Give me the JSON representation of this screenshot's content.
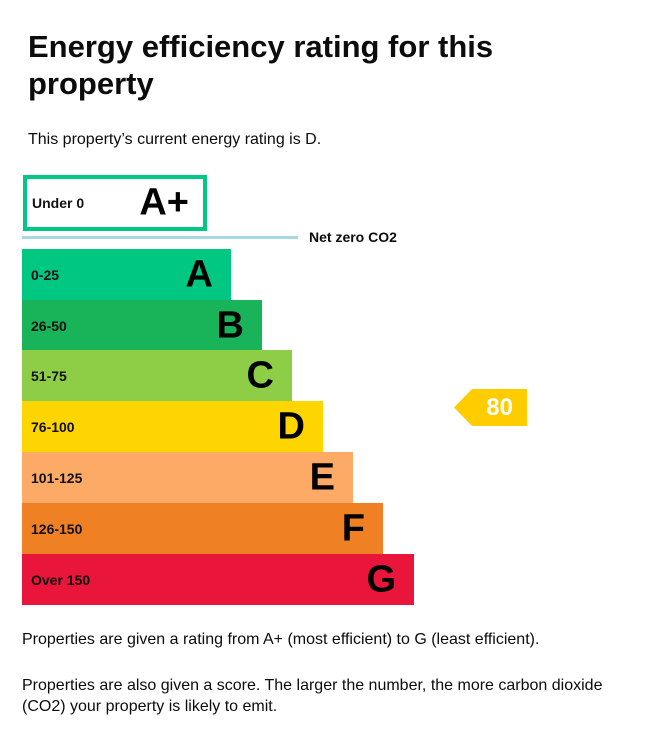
{
  "title": "Energy efficiency rating for this property",
  "intro": "This property’s current energy rating is D.",
  "chart_data": {
    "type": "bar",
    "aplus": {
      "range": "Under 0",
      "letter": "A+",
      "color": "#00c781"
    },
    "net_zero_label": "Net zero CO2",
    "bands": [
      {
        "range": "0-25",
        "letter": "A",
        "color": "#00c781"
      },
      {
        "range": "26-50",
        "letter": "B",
        "color": "#19b459"
      },
      {
        "range": "51-75",
        "letter": "C",
        "color": "#8dce46"
      },
      {
        "range": "76-100",
        "letter": "D",
        "color": "#ffd500"
      },
      {
        "range": "101-125",
        "letter": "E",
        "color": "#fcaa65"
      },
      {
        "range": "126-150",
        "letter": "F",
        "color": "#ef8023"
      },
      {
        "range": "Over 150",
        "letter": "G",
        "color": "#e9153b"
      }
    ],
    "current_score": 80,
    "current_band": "D",
    "marker_color": "#ffcc00"
  },
  "notes": [
    "Properties are given a rating from A+ (most efficient) to G (least efficient).",
    "Properties are also given a score. The larger the number, the more carbon dioxide (CO2) your property is likely to emit."
  ]
}
